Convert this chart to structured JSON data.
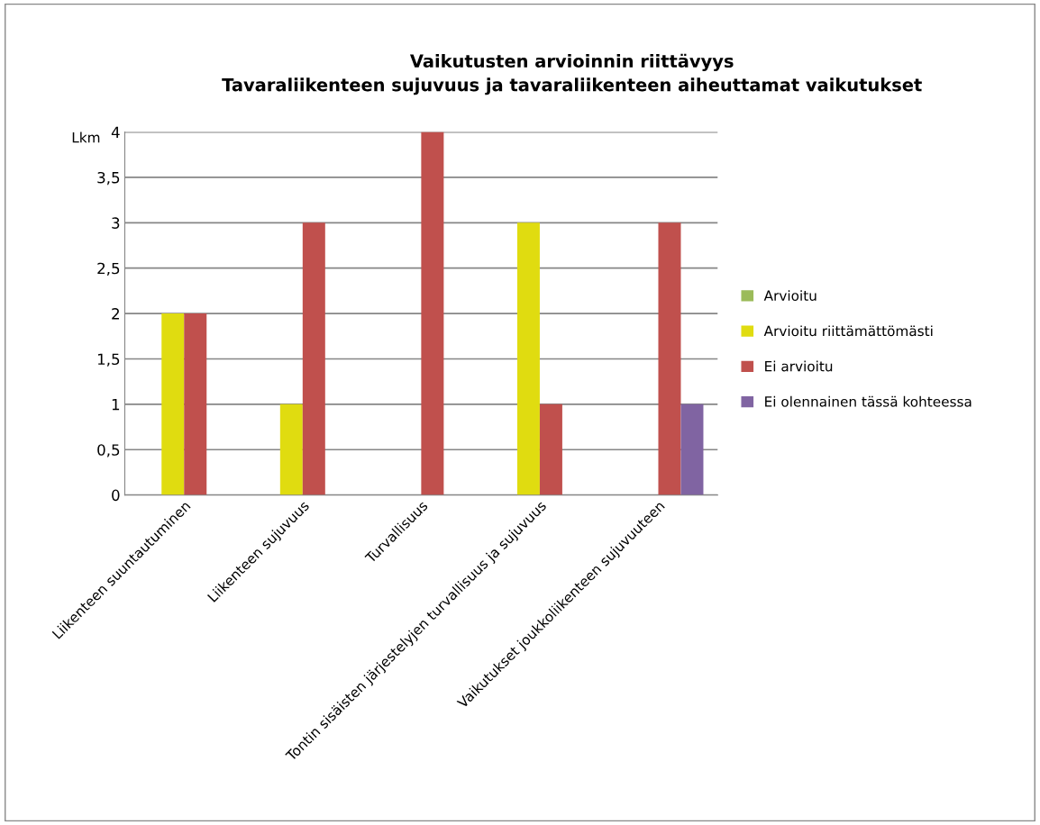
{
  "chart_data": {
    "type": "bar",
    "title": "Vaikutusten arvioinnin riittävyys\nTavaraliikenteen sujuvuus ja tavaraliikenteen aiheuttamat vaikutukset",
    "ylabel": "Lkm",
    "categories": [
      "Liikenteen suuntautuminen",
      "Liikenteen sujuvuus",
      "Turvallisuus",
      "Tontin sisäisten järjestelyjen turvallisuus ja sujuvuus",
      "Vaikutukset joukkoliikenteen sujuvuuteen"
    ],
    "series": [
      {
        "name": "Arvioitu",
        "color": "#9bbb59",
        "values": [
          0,
          0,
          0,
          0,
          0
        ]
      },
      {
        "name": "Arvioitu riittämättömästi",
        "color": "#e0dc10",
        "values": [
          2,
          1,
          0,
          3,
          0
        ]
      },
      {
        "name": "Ei arvioitu",
        "color": "#c0504d",
        "values": [
          2,
          3,
          4,
          1,
          3
        ]
      },
      {
        "name": "Ei olennainen tässä kohteessa",
        "color": "#8064a2",
        "values": [
          0,
          0,
          0,
          0,
          1
        ]
      }
    ],
    "ylim": [
      0,
      4
    ],
    "yticks": [
      0,
      {
        "value": 0.5,
        "label": "0,5"
      },
      1,
      {
        "value": 1.5,
        "label": "1,5"
      },
      2,
      {
        "value": 2.5,
        "label": "2,5"
      },
      3,
      {
        "value": 3.5,
        "label": "3,5"
      },
      4
    ],
    "grid": "y",
    "legend": "right"
  }
}
